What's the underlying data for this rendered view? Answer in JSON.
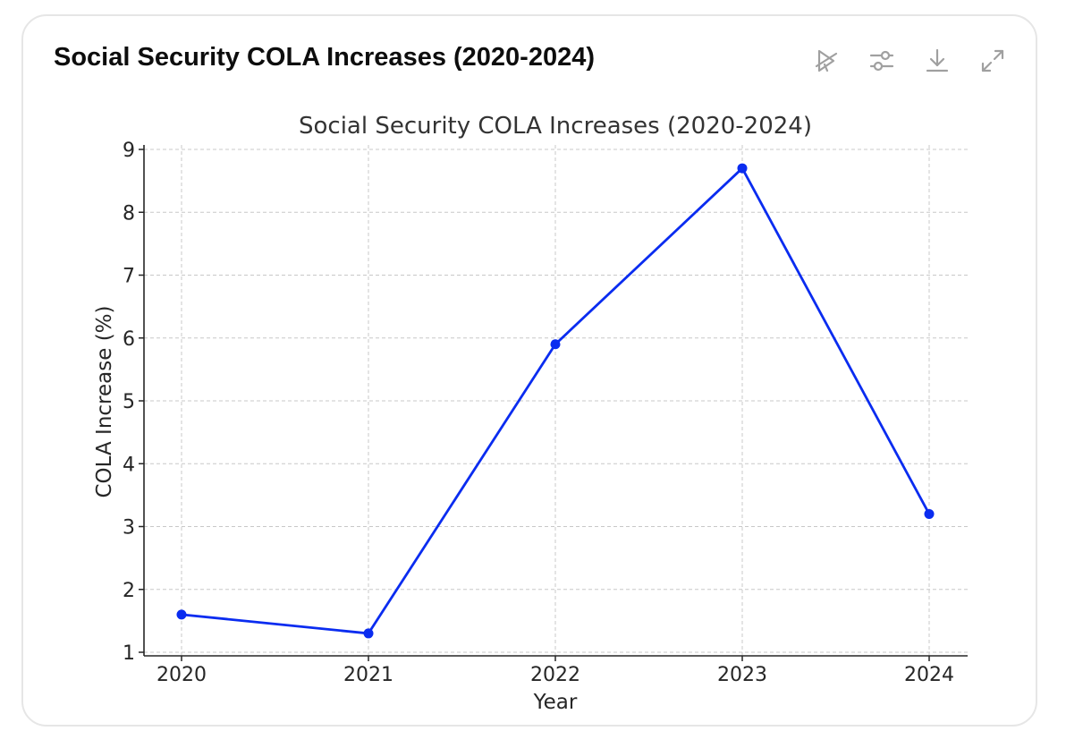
{
  "card": {
    "title": "Social Security COLA Increases (2020-2024)"
  },
  "toolbar": {
    "icons": [
      "chart-interactive-off-icon",
      "adjust-sliders-icon",
      "download-icon",
      "expand-icon"
    ],
    "icon_color": "#a0a0a0"
  },
  "chart_data": {
    "type": "line",
    "title": "Social Security COLA Increases (2020-2024)",
    "xlabel": "Year",
    "ylabel": "COLA Increase (%)",
    "categories": [
      "2020",
      "2021",
      "2022",
      "2023",
      "2024"
    ],
    "series": [
      {
        "values": [
          1.6,
          1.3,
          5.9,
          8.7,
          3.2
        ],
        "color": "#0a2cf0"
      }
    ],
    "ylim": [
      1,
      9
    ],
    "yticks": [
      1,
      2,
      3,
      4,
      5,
      6,
      7,
      8,
      9
    ],
    "grid": true,
    "marker": "circle"
  }
}
